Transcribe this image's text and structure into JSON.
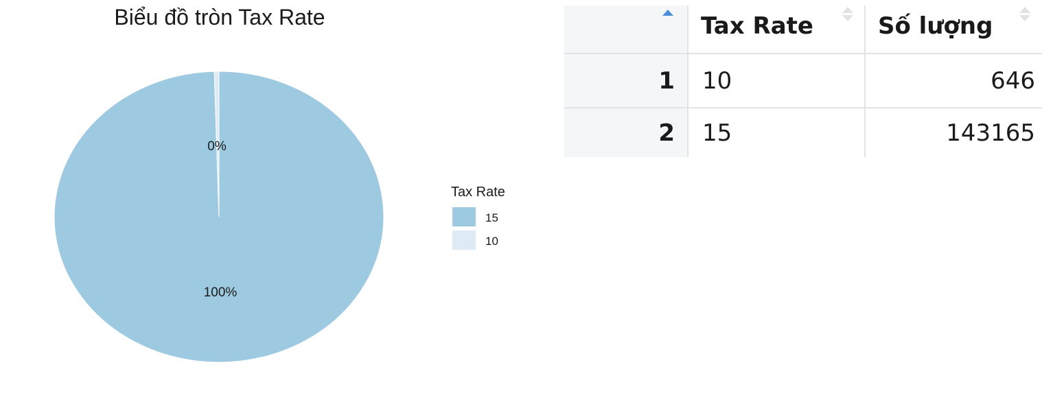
{
  "chart_data": {
    "type": "pie",
    "title": "Biểu đồ tròn Tax Rate",
    "legend_title": "Tax Rate",
    "legend_position": "right",
    "slices": [
      {
        "label": "15",
        "value": 143165,
        "percent_label": "100%",
        "color": "#9ECAE1"
      },
      {
        "label": "10",
        "value": 646,
        "percent_label": "0%",
        "color": "#DEEBF7"
      }
    ]
  },
  "table": {
    "columns": [
      "",
      "Tax Rate",
      "Số lượng"
    ],
    "rows": [
      {
        "index": "1",
        "tax_rate": "10",
        "count": "646"
      },
      {
        "index": "2",
        "tax_rate": "15",
        "count": "143165"
      }
    ],
    "sorted_column": "index",
    "sort_direction": "ascending"
  }
}
